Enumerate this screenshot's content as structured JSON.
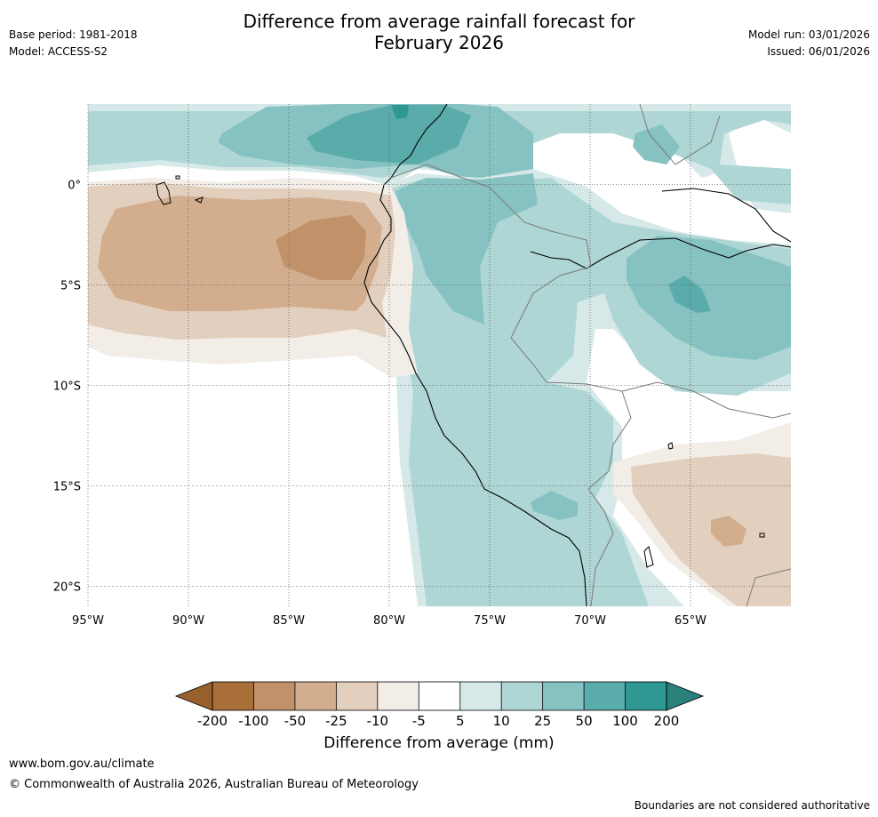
{
  "header": {
    "title_line1": "Difference from average rainfall forecast for",
    "title_line2": "February 2026",
    "base_period": "Base period: 1981-2018",
    "model": "Model: ACCESS-S2",
    "model_run": "Model run: 03/01/2026",
    "issued": "Issued: 06/01/2026"
  },
  "map": {
    "lat_labels": [
      "0°",
      "5°S",
      "10°S",
      "15°S",
      "20°S"
    ],
    "lat_values": [
      0,
      -5,
      -10,
      -15,
      -20
    ],
    "lon_labels": [
      "95°W",
      "90°W",
      "85°W",
      "80°W",
      "75°W",
      "70°W",
      "65°W"
    ],
    "lon_values": [
      -95,
      -90,
      -85,
      -80,
      -75,
      -70,
      -65
    ],
    "extent": {
      "lon_min": -95,
      "lon_max": -60,
      "lat_min": -21,
      "lat_max": 4
    }
  },
  "colorbar": {
    "ticks": [
      "-200",
      "-100",
      "-50",
      "-25",
      "-10",
      "-5",
      "5",
      "10",
      "25",
      "50",
      "100",
      "200"
    ],
    "colors": [
      "#a86f38",
      "#c1916a",
      "#d2ae8e",
      "#e3cfbd",
      "#f2ede7",
      "#ffffff",
      "#d6e9e8",
      "#aed6d5",
      "#86c2c1",
      "#5aacab",
      "#2f9893"
    ],
    "under_color": "#98602d",
    "over_color": "#29807c",
    "label": "Difference from average (mm)"
  },
  "footer": {
    "url": "www.bom.gov.au/climate",
    "copyright": "© Commonwealth of Australia 2026, Australian Bureau of Meteorology",
    "note": "Boundaries are not considered authoritative"
  }
}
